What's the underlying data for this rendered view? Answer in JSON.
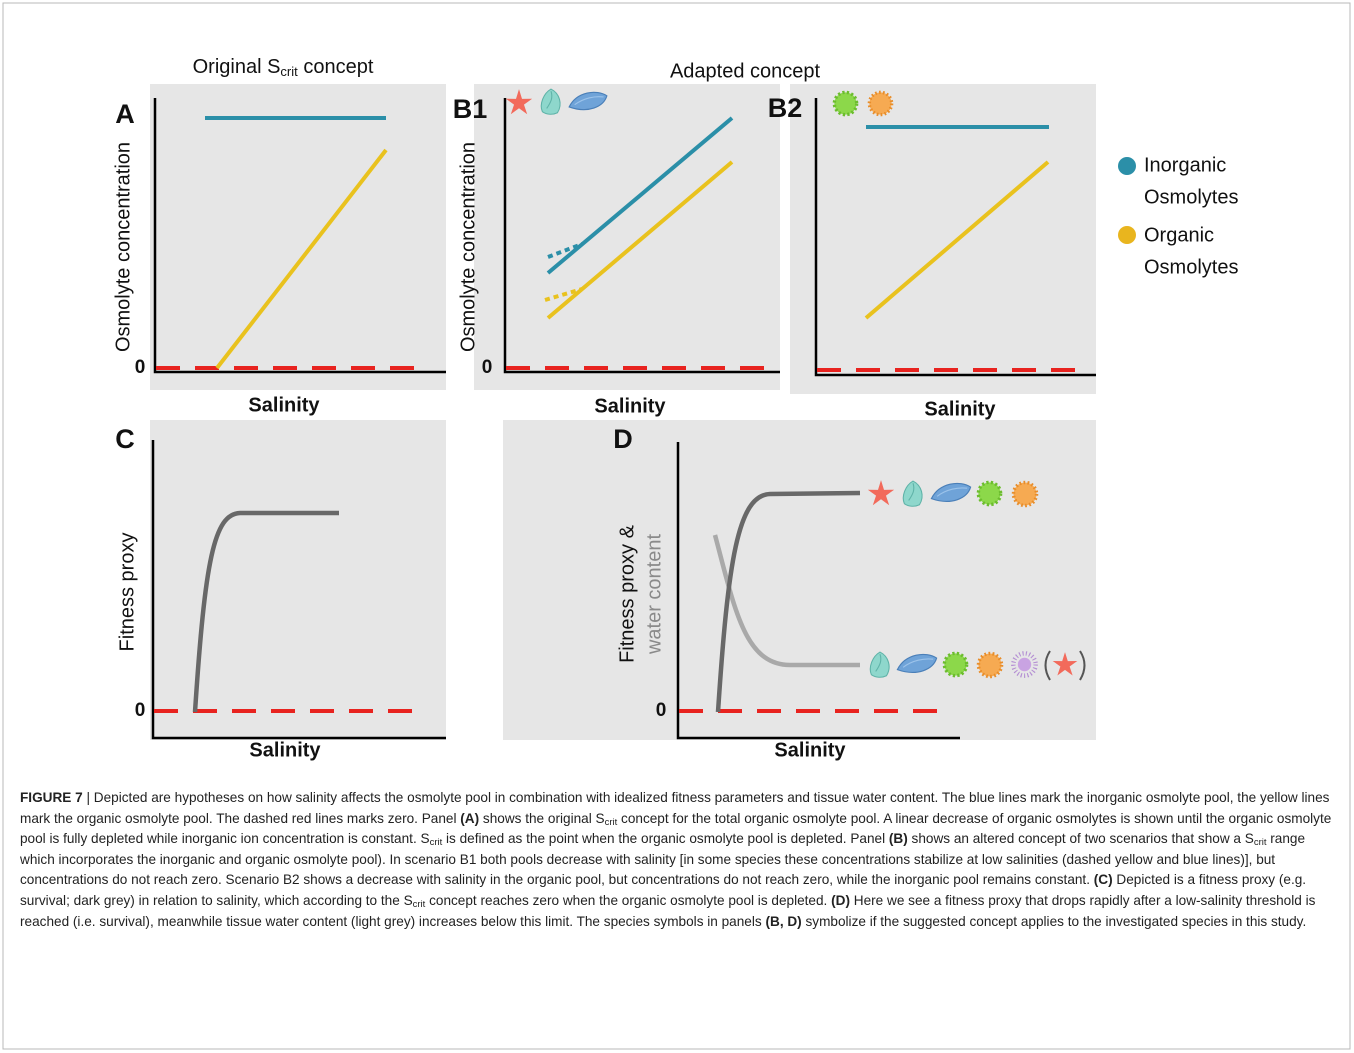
{
  "figure": {
    "title_left": [
      "Original S",
      "crit",
      " concept"
    ],
    "title_right": "Adapted concept",
    "panels": {
      "A": {
        "letter": "A",
        "ylabel": "Osmolyte concentration",
        "xlabel": "Salinity",
        "zero": "0"
      },
      "B1": {
        "letter": "B1",
        "ylabel": "Osmolyte concentration",
        "xlabel": "Salinity",
        "zero": "0"
      },
      "B2": {
        "letter": "B2",
        "xlabel": "Salinity"
      },
      "C": {
        "letter": "C",
        "ylabel": "Fitness proxy",
        "xlabel": "Salinity",
        "zero": "0"
      },
      "D": {
        "letter": "D",
        "ylabel": [
          "Fitness proxy &",
          "water content"
        ],
        "xlabel": "Salinity",
        "zero": "0"
      }
    },
    "legend": [
      {
        "lines": [
          "Inorganic",
          "Osmolytes"
        ],
        "color": "#2b8fa8"
      },
      {
        "lines": [
          "Organic",
          "Osmolytes"
        ],
        "color": "#e9b51e"
      }
    ]
  },
  "caption": {
    "parts": [
      "FIGURE 7",
      " | Depicted are hypotheses on how salinity affects the osmolyte pool in combination with idealized fitness parameters and tissue water content. The blue lines mark the inorganic osmolyte pool, the yellow lines mark the organic osmolyte pool. The dashed red lines marks zero. Panel ",
      "(A)",
      " shows the original S",
      "crit",
      " concept for the total organic osmolyte pool. A linear decrease of organic osmolytes is shown until the organic osmolyte pool is fully depleted while inorganic ion concentration is constant. S",
      "crit",
      " is defined as the point when the organic osmolyte pool is depleted. Panel ",
      "(B)",
      " shows an altered concept of two scenarios that show a S",
      "crit",
      " range which incorporates the inorganic and organic osmolyte pool). In scenario B1 both pools decrease with salinity [in some species these concentrations stabilize at low salinities (dashed yellow and blue lines)], but concentrations do not reach zero. Scenario B2 shows a decrease with salinity in the organic pool, but concentrations do not reach zero, while the inorganic pool remains constant. ",
      "(C)",
      " Depicted is a fitness proxy (e.g. survival; dark grey) in relation to salinity, which according to the S",
      "crit",
      " concept reaches zero when the organic osmolyte pool is depleted. ",
      "(D)",
      " Here we see a fitness proxy that drops rapidly after a low-salinity threshold is reached (i.e. survival), meanwhile tissue water content (light grey) increases below this limit. The species symbols in panels ",
      "(B, D)",
      " symbolize if the suggested concept applies to the investigated species in this study."
    ]
  }
}
